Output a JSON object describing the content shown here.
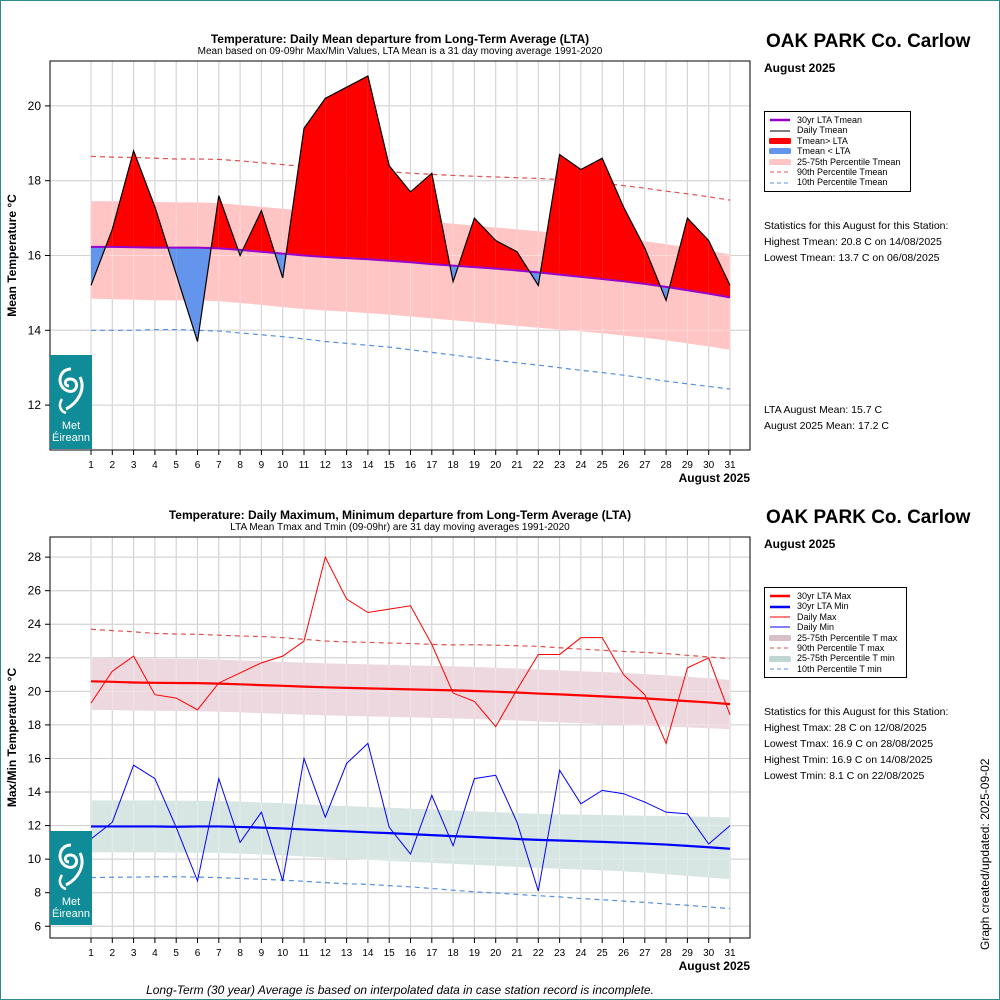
{
  "colors": {
    "red": "#ff0000",
    "blue": "#6495ed",
    "lta_mean": "#9900cc",
    "pink_band": "#ffc4c4",
    "max_band": "#ecd8de",
    "min_band": "#d7e6e3",
    "pct90": "#e05050",
    "pct10": "#5590e0",
    "logo": "#0f8c98"
  },
  "icons": {
    "logo": "met-eireann-logo-icon"
  },
  "logo": {
    "line1": "Met",
    "line2": "Éireann"
  },
  "top": {
    "station": "OAK PARK Co. Carlow",
    "month": "August 2025",
    "legend": [
      "30yr LTA Tmean",
      "Daily Tmean",
      "Tmean> LTA",
      "Tmean < LTA",
      "25-75th Percentile Tmean",
      "90th Percentile Tmean",
      "10th Percentile Tmean"
    ],
    "stats_header": "Statistics for this August for this Station:",
    "stats": [
      "Highest Tmean: 20.8 C on 14/08/2025",
      "Lowest Tmean: 13.7 C on 06/08/2025"
    ],
    "means": [
      "LTA August Mean: 15.7 C",
      "August 2025 Mean: 17.2 C"
    ]
  },
  "bottom": {
    "station": "OAK PARK Co. Carlow",
    "month": "August 2025",
    "legend": [
      "30yr LTA Max",
      "30yr LTA Min",
      "Daily Max",
      "Daily Min",
      "25-75th Percentile T max",
      "90th Percentile T max",
      "25-75th Percentile T min",
      "10th Percentile T min"
    ],
    "stats_header": "Statistics for this August for this Station:",
    "stats": [
      "Highest Tmax: 28 C on 12/08/2025",
      "Lowest Tmax: 16.9 C on 28/08/2025",
      "Highest Tmin: 16.9 C on 14/08/2025",
      "Lowest Tmin: 8.1 C on 22/08/2025"
    ]
  },
  "footnote": "Long-Term (30 year) Average is based on interpolated data in case station record is incomplete.",
  "updated": "Graph created/updated:  2025-09-02",
  "chart_data": [
    {
      "type": "line",
      "title": "Temperature: Daily Mean departure from Long-Term Average (LTA)",
      "subtitle": "Mean based on 09-09hr Max/Min Values, LTA Mean is a 31 day moving average 1991-2020",
      "xlabel": "August 2025",
      "ylabel": "Mean Temperature °C",
      "x": [
        1,
        2,
        3,
        4,
        5,
        6,
        7,
        8,
        9,
        10,
        11,
        12,
        13,
        14,
        15,
        16,
        17,
        18,
        19,
        20,
        21,
        22,
        23,
        24,
        25,
        26,
        27,
        28,
        29,
        30,
        31
      ],
      "ylim": [
        10.8,
        21.2
      ],
      "yticks": [
        12,
        14,
        16,
        18,
        20
      ],
      "grid": true,
      "series": [
        {
          "name": "Daily Tmean",
          "values": [
            15.2,
            16.7,
            18.8,
            17.3,
            15.5,
            13.7,
            17.6,
            16.0,
            17.2,
            15.4,
            19.4,
            20.2,
            20.5,
            20.8,
            18.4,
            17.7,
            18.2,
            15.3,
            17.0,
            16.4,
            16.1,
            15.2,
            18.7,
            18.3,
            18.6,
            17.3,
            16.2,
            14.8,
            17.0,
            16.4,
            15.2
          ]
        },
        {
          "name": "30yr LTA Tmean",
          "values": [
            16.23,
            16.23,
            16.22,
            16.21,
            16.21,
            16.21,
            16.19,
            16.15,
            16.1,
            16.05,
            16.0,
            15.96,
            15.93,
            15.9,
            15.86,
            15.82,
            15.77,
            15.73,
            15.69,
            15.65,
            15.6,
            15.55,
            15.49,
            15.43,
            15.37,
            15.31,
            15.24,
            15.16,
            15.07,
            14.98,
            14.88
          ]
        },
        {
          "name": "25th Percentile Tmean",
          "values": [
            14.85,
            14.83,
            14.82,
            14.8,
            14.8,
            14.8,
            14.78,
            14.73,
            14.68,
            14.62,
            14.57,
            14.53,
            14.5,
            14.46,
            14.42,
            14.37,
            14.32,
            14.27,
            14.22,
            14.17,
            14.12,
            14.07,
            14.02,
            13.97,
            13.92,
            13.86,
            13.8,
            13.73,
            13.65,
            13.57,
            13.48
          ]
        },
        {
          "name": "75th Percentile Tmean",
          "values": [
            17.45,
            17.45,
            17.44,
            17.43,
            17.42,
            17.42,
            17.4,
            17.35,
            17.3,
            17.25,
            17.2,
            17.15,
            17.1,
            17.05,
            17.0,
            16.95,
            16.9,
            16.85,
            16.8,
            16.75,
            16.7,
            16.65,
            16.6,
            16.55,
            16.5,
            16.45,
            16.38,
            16.3,
            16.22,
            16.13,
            16.03
          ]
        },
        {
          "name": "90th Percentile Tmean",
          "values": [
            18.65,
            18.63,
            18.62,
            18.6,
            18.58,
            18.58,
            18.57,
            18.53,
            18.48,
            18.43,
            18.38,
            18.33,
            18.3,
            18.27,
            18.24,
            18.2,
            18.17,
            18.14,
            18.12,
            18.1,
            18.08,
            18.06,
            18.03,
            17.98,
            17.93,
            17.87,
            17.8,
            17.72,
            17.65,
            17.57,
            17.48
          ]
        },
        {
          "name": "10th Percentile Tmean",
          "values": [
            14.0,
            14.0,
            14.0,
            14.02,
            14.02,
            14.0,
            13.98,
            13.93,
            13.88,
            13.83,
            13.77,
            13.7,
            13.65,
            13.6,
            13.55,
            13.48,
            13.41,
            13.34,
            13.27,
            13.2,
            13.13,
            13.07,
            13.0,
            12.93,
            12.87,
            12.8,
            12.72,
            12.64,
            12.57,
            12.5,
            12.43
          ]
        }
      ]
    },
    {
      "type": "line",
      "title": "Temperature: Daily Maximum, Minimum departure from Long-Term Average (LTA)",
      "subtitle": "LTA Mean Tmax and Tmin (09-09hr) are 31 day moving averages 1991-2020",
      "xlabel": "August 2025",
      "ylabel": "Max/Min Temperature °C",
      "x": [
        1,
        2,
        3,
        4,
        5,
        6,
        7,
        8,
        9,
        10,
        11,
        12,
        13,
        14,
        15,
        16,
        17,
        18,
        19,
        20,
        21,
        22,
        23,
        24,
        25,
        26,
        27,
        28,
        29,
        30,
        31
      ],
      "ylim": [
        5.3,
        29.2
      ],
      "yticks": [
        6,
        8,
        10,
        12,
        14,
        16,
        18,
        20,
        22,
        24,
        26,
        28
      ],
      "grid": true,
      "series": [
        {
          "name": "Daily Max",
          "values": [
            19.3,
            21.2,
            22.1,
            19.8,
            19.6,
            18.9,
            20.5,
            21.1,
            21.7,
            22.1,
            23.0,
            28.0,
            25.5,
            24.7,
            24.9,
            25.1,
            22.8,
            19.9,
            19.4,
            17.9,
            20.1,
            22.2,
            22.2,
            23.2,
            23.2,
            21.0,
            19.8,
            16.9,
            21.4,
            22.0,
            18.6
          ]
        },
        {
          "name": "Daily Min",
          "values": [
            11.2,
            12.2,
            15.6,
            14.8,
            11.9,
            8.7,
            14.8,
            11.0,
            12.8,
            8.7,
            16.0,
            12.5,
            15.7,
            16.9,
            11.9,
            10.3,
            13.8,
            10.8,
            14.8,
            15.0,
            12.2,
            8.1,
            15.3,
            13.3,
            14.1,
            13.9,
            13.4,
            12.8,
            12.7,
            10.9,
            12.0
          ]
        },
        {
          "name": "30yr LTA Max",
          "values": [
            20.6,
            20.57,
            20.53,
            20.51,
            20.5,
            20.49,
            20.46,
            20.42,
            20.37,
            20.33,
            20.28,
            20.24,
            20.21,
            20.18,
            20.15,
            20.12,
            20.09,
            20.06,
            20.02,
            19.98,
            19.93,
            19.87,
            19.82,
            19.76,
            19.7,
            19.64,
            19.58,
            19.5,
            19.42,
            19.34,
            19.24
          ]
        },
        {
          "name": "30yr LTA Min",
          "values": [
            11.95,
            11.95,
            11.95,
            11.95,
            11.93,
            11.95,
            11.95,
            11.92,
            11.88,
            11.83,
            11.77,
            11.71,
            11.66,
            11.6,
            11.55,
            11.49,
            11.43,
            11.37,
            11.32,
            11.26,
            11.2,
            11.15,
            11.11,
            11.07,
            11.03,
            10.98,
            10.93,
            10.87,
            10.79,
            10.71,
            10.62
          ]
        },
        {
          "name": "25th Percentile T max",
          "values": [
            18.9,
            18.88,
            18.86,
            18.84,
            18.83,
            18.82,
            18.79,
            18.75,
            18.7,
            18.66,
            18.61,
            18.57,
            18.54,
            18.51,
            18.48,
            18.45,
            18.42,
            18.39,
            18.35,
            18.31,
            18.26,
            18.2,
            18.15,
            18.1,
            18.05,
            18.0,
            17.95,
            17.9,
            17.85,
            17.8,
            17.75
          ]
        },
        {
          "name": "75th Percentile T max",
          "values": [
            22.0,
            21.98,
            21.96,
            21.94,
            21.93,
            21.92,
            21.89,
            21.85,
            21.8,
            21.76,
            21.71,
            21.67,
            21.64,
            21.61,
            21.58,
            21.55,
            21.52,
            21.49,
            21.45,
            21.41,
            21.36,
            21.3,
            21.25,
            21.2,
            21.15,
            21.1,
            21.03,
            20.95,
            20.87,
            20.78,
            20.68
          ]
        },
        {
          "name": "90th Percentile T max",
          "values": [
            23.7,
            23.62,
            23.55,
            23.45,
            23.42,
            23.4,
            23.35,
            23.3,
            23.27,
            23.2,
            23.1,
            23.0,
            22.95,
            22.92,
            22.88,
            22.85,
            22.8,
            22.77,
            22.78,
            22.75,
            22.72,
            22.68,
            22.6,
            22.52,
            22.45,
            22.38,
            22.32,
            22.25,
            22.15,
            22.05,
            21.95
          ]
        },
        {
          "name": "25th Percentile T min",
          "values": [
            10.4,
            10.4,
            10.4,
            10.4,
            10.38,
            10.38,
            10.37,
            10.33,
            10.28,
            10.23,
            10.16,
            10.09,
            10.02,
            9.96,
            9.9,
            9.84,
            9.78,
            9.72,
            9.66,
            9.6,
            9.54,
            9.48,
            9.43,
            9.38,
            9.33,
            9.27,
            9.2,
            9.1,
            9.0,
            8.9,
            8.8
          ]
        },
        {
          "name": "75th Percentile T min",
          "values": [
            13.5,
            13.5,
            13.5,
            13.5,
            13.48,
            13.48,
            13.47,
            13.43,
            13.38,
            13.33,
            13.27,
            13.21,
            13.16,
            13.11,
            13.06,
            13.01,
            12.96,
            12.9,
            12.85,
            12.8,
            12.75,
            12.7,
            12.67,
            12.65,
            12.63,
            12.61,
            12.59,
            12.57,
            12.55,
            12.52,
            12.48
          ]
        },
        {
          "name": "10th Percentile T min",
          "values": [
            8.9,
            8.92,
            8.93,
            8.95,
            8.95,
            8.93,
            8.9,
            8.85,
            8.8,
            8.75,
            8.68,
            8.6,
            8.53,
            8.5,
            8.42,
            8.35,
            8.25,
            8.15,
            8.05,
            7.98,
            7.9,
            7.82,
            7.75,
            7.65,
            7.58,
            7.5,
            7.42,
            7.33,
            7.25,
            7.15,
            7.05
          ]
        }
      ]
    }
  ]
}
